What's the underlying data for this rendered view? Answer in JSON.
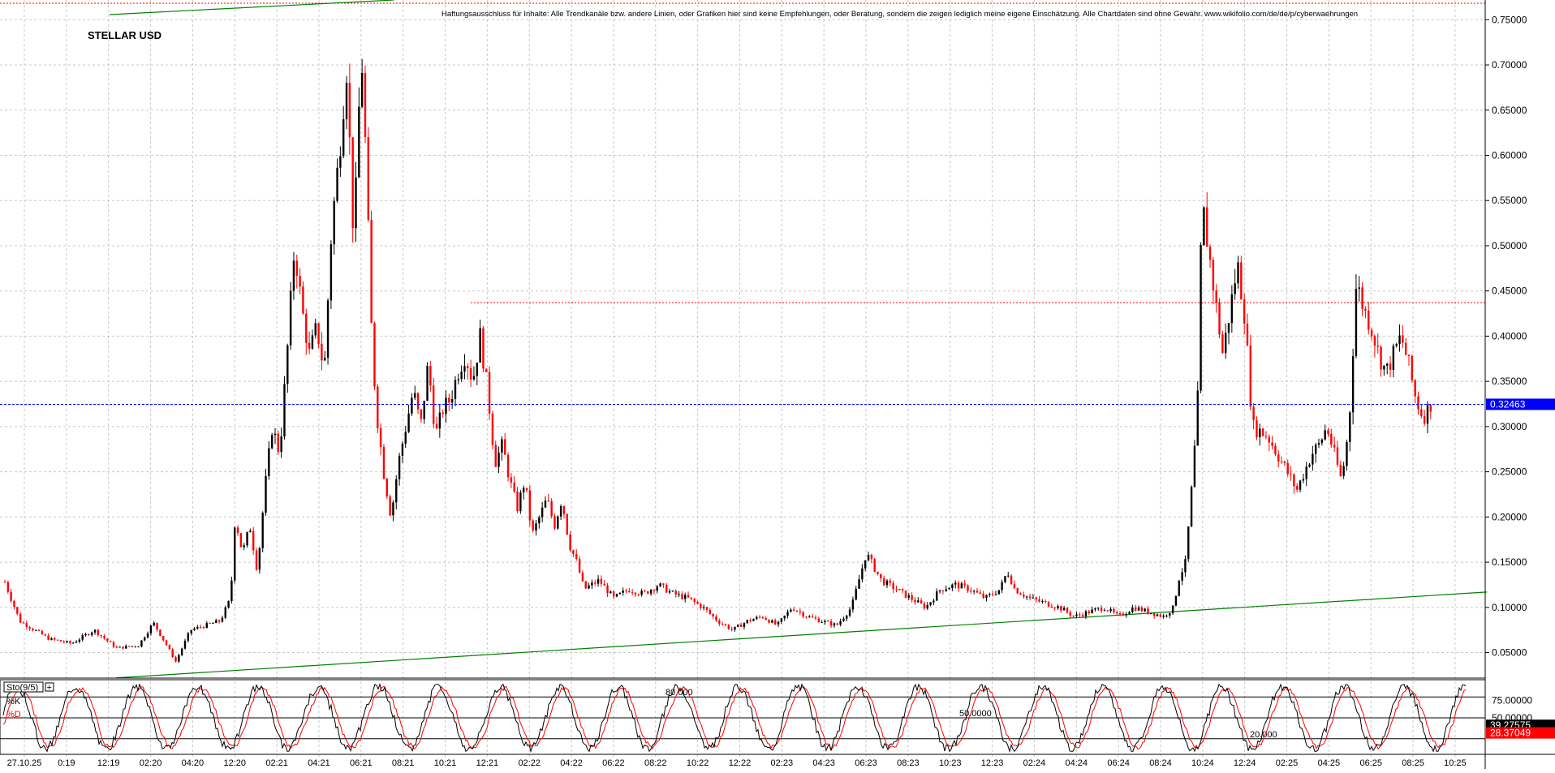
{
  "symbol": "STELLAR USD",
  "disclaimer": "Haftungsausschluss für Inhalte: Alle Trendkanäle bzw. andere Linien, oder Grafiken hier sind keine Empfehlungen, oder Beratung, sondern die zeigen lediglich meine eigene Einschätzung. Alle Chartdaten sind ohne Gewähr. www.wikifolio.com/de/de/p/cyberwaehrungen",
  "colors": {
    "up_candle": "#000000",
    "down_candle": "#ff0000",
    "trendline": "#008000",
    "current_price_line": "#0000ff",
    "resistance_line": "#ff0000",
    "grid": "#c8c8c8",
    "stoch_k": "#000000",
    "stoch_d": "#ff0000"
  },
  "chart_data": [
    {
      "type": "candlestick",
      "title": "STELLAR USD",
      "ylim": [
        0.02,
        0.77
      ],
      "y_ticks": [
        "0.75000",
        "0.70000",
        "0.65000",
        "0.60000",
        "0.55000",
        "0.50000",
        "0.45000",
        "0.40000",
        "0.35000",
        "0.30000",
        "0.25000",
        "0.20000",
        "0.15000",
        "0.10000",
        "0.05000"
      ],
      "x_ticks": [
        "27.10.25",
        "0:19",
        "12:19",
        "02:20",
        "04:20",
        "12:20",
        "02:21",
        "04:21",
        "06:21",
        "08:21",
        "10:21",
        "12:21",
        "02:22",
        "04:22",
        "06:22",
        "08:22",
        "10:22",
        "12:22",
        "02:23",
        "04:23",
        "06:23",
        "08:23",
        "10:23",
        "12:23",
        "02:24",
        "04:24",
        "06:24",
        "08:24",
        "10:24",
        "12:24",
        "02:25",
        "04:25",
        "06:25",
        "08:25",
        "10:25"
      ],
      "current_price": "0.32463",
      "grid": true,
      "price_path": [
        [
          0.0,
          0.128
        ],
        [
          0.01,
          0.085
        ],
        [
          0.03,
          0.065
        ],
        [
          0.045,
          0.06
        ],
        [
          0.06,
          0.075
        ],
        [
          0.075,
          0.055
        ],
        [
          0.09,
          0.058
        ],
        [
          0.1,
          0.083
        ],
        [
          0.11,
          0.055
        ],
        [
          0.115,
          0.04
        ],
        [
          0.125,
          0.075
        ],
        [
          0.145,
          0.085
        ],
        [
          0.152,
          0.11
        ],
        [
          0.155,
          0.2
        ],
        [
          0.16,
          0.16
        ],
        [
          0.165,
          0.19
        ],
        [
          0.17,
          0.14
        ],
        [
          0.175,
          0.23
        ],
        [
          0.18,
          0.3
        ],
        [
          0.185,
          0.27
        ],
        [
          0.19,
          0.38
        ],
        [
          0.195,
          0.5
        ],
        [
          0.2,
          0.43
        ],
        [
          0.205,
          0.38
        ],
        [
          0.21,
          0.41
        ],
        [
          0.215,
          0.36
        ],
        [
          0.22,
          0.52
        ],
        [
          0.225,
          0.6
        ],
        [
          0.23,
          0.7
        ],
        [
          0.235,
          0.5
        ],
        [
          0.24,
          0.72
        ],
        [
          0.243,
          0.6
        ],
        [
          0.247,
          0.4
        ],
        [
          0.25,
          0.32
        ],
        [
          0.255,
          0.25
        ],
        [
          0.26,
          0.2
        ],
        [
          0.265,
          0.26
        ],
        [
          0.27,
          0.3
        ],
        [
          0.275,
          0.34
        ],
        [
          0.28,
          0.3
        ],
        [
          0.285,
          0.37
        ],
        [
          0.29,
          0.29
        ],
        [
          0.295,
          0.32
        ],
        [
          0.3,
          0.33
        ],
        [
          0.305,
          0.36
        ],
        [
          0.31,
          0.38
        ],
        [
          0.315,
          0.35
        ],
        [
          0.32,
          0.4
        ],
        [
          0.325,
          0.34
        ],
        [
          0.33,
          0.26
        ],
        [
          0.335,
          0.28
        ],
        [
          0.34,
          0.24
        ],
        [
          0.345,
          0.21
        ],
        [
          0.35,
          0.24
        ],
        [
          0.355,
          0.18
        ],
        [
          0.36,
          0.2
        ],
        [
          0.365,
          0.22
        ],
        [
          0.37,
          0.19
        ],
        [
          0.375,
          0.22
        ],
        [
          0.38,
          0.17
        ],
        [
          0.385,
          0.15
        ],
        [
          0.39,
          0.12
        ],
        [
          0.4,
          0.13
        ],
        [
          0.41,
          0.11
        ],
        [
          0.42,
          0.12
        ],
        [
          0.43,
          0.115
        ],
        [
          0.44,
          0.125
        ],
        [
          0.45,
          0.115
        ],
        [
          0.46,
          0.11
        ],
        [
          0.47,
          0.1
        ],
        [
          0.48,
          0.085
        ],
        [
          0.49,
          0.075
        ],
        [
          0.5,
          0.085
        ],
        [
          0.51,
          0.09
        ],
        [
          0.52,
          0.08
        ],
        [
          0.53,
          0.1
        ],
        [
          0.54,
          0.09
        ],
        [
          0.55,
          0.085
        ],
        [
          0.56,
          0.08
        ],
        [
          0.57,
          0.1
        ],
        [
          0.58,
          0.16
        ],
        [
          0.585,
          0.145
        ],
        [
          0.59,
          0.13
        ],
        [
          0.6,
          0.12
        ],
        [
          0.61,
          0.11
        ],
        [
          0.62,
          0.1
        ],
        [
          0.63,
          0.12
        ],
        [
          0.64,
          0.125
        ],
        [
          0.65,
          0.12
        ],
        [
          0.66,
          0.11
        ],
        [
          0.67,
          0.12
        ],
        [
          0.675,
          0.14
        ],
        [
          0.68,
          0.12
        ],
        [
          0.69,
          0.11
        ],
        [
          0.7,
          0.105
        ],
        [
          0.71,
          0.1
        ],
        [
          0.72,
          0.09
        ],
        [
          0.73,
          0.095
        ],
        [
          0.74,
          0.1
        ],
        [
          0.75,
          0.09
        ],
        [
          0.76,
          0.1
        ],
        [
          0.77,
          0.095
        ],
        [
          0.78,
          0.09
        ],
        [
          0.787,
          0.1
        ],
        [
          0.79,
          0.13
        ],
        [
          0.795,
          0.15
        ],
        [
          0.8,
          0.25
        ],
        [
          0.803,
          0.32
        ],
        [
          0.806,
          0.55
        ],
        [
          0.81,
          0.5
        ],
        [
          0.815,
          0.44
        ],
        [
          0.82,
          0.38
        ],
        [
          0.825,
          0.43
        ],
        [
          0.83,
          0.48
        ],
        [
          0.835,
          0.42
        ],
        [
          0.84,
          0.3
        ],
        [
          0.85,
          0.29
        ],
        [
          0.86,
          0.26
        ],
        [
          0.87,
          0.23
        ],
        [
          0.875,
          0.25
        ],
        [
          0.88,
          0.27
        ],
        [
          0.885,
          0.28
        ],
        [
          0.89,
          0.3
        ],
        [
          0.895,
          0.27
        ],
        [
          0.9,
          0.24
        ],
        [
          0.905,
          0.3
        ],
        [
          0.91,
          0.46
        ],
        [
          0.915,
          0.43
        ],
        [
          0.92,
          0.41
        ],
        [
          0.925,
          0.38
        ],
        [
          0.93,
          0.36
        ],
        [
          0.935,
          0.38
        ],
        [
          0.94,
          0.4
        ],
        [
          0.945,
          0.37
        ],
        [
          0.95,
          0.33
        ],
        [
          0.955,
          0.31
        ],
        [
          0.96,
          0.325
        ]
      ]
    },
    {
      "type": "line",
      "title": "Sto(9/5)",
      "series": [
        {
          "name": "%K"
        },
        {
          "name": "%D"
        }
      ],
      "levels": [
        "80.000",
        "50.0000",
        "20.000"
      ],
      "y_ticks": [
        "75.00000",
        "50.00000"
      ],
      "current_k": "39.27575",
      "current_d": "28.37049"
    }
  ]
}
